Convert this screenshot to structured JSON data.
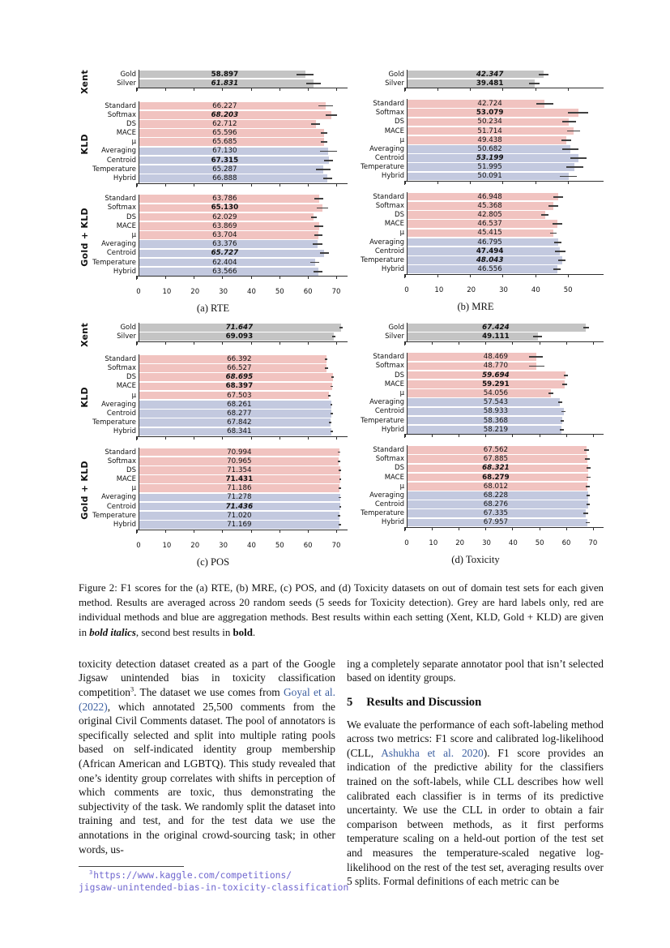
{
  "colors": {
    "grey": "#c4c4c4",
    "red": "#f1c3c0",
    "blue": "#c3c9df",
    "errbar": "#404040",
    "citation_link": "#3c5fa0",
    "url_link": "#6f66cf"
  },
  "figure": {
    "caption_segments": [
      {
        "t": "Figure 2: F1 scores for the (a) RTE, (b) MRE, (c) POS, and (d) Toxicity datasets on out of domain test sets for each given method. Results are averaged across 20 random seeds (5 seeds for Toxicity detection). Grey are hard labels only, red are individual methods and blue are aggregation methods. Best results within each setting (Xent, KLD, Gold + KLD) are given in "
      },
      {
        "t": "bold italics",
        "s": "bi"
      },
      {
        "t": ", second best results in "
      },
      {
        "t": "bold",
        "s": "b"
      },
      {
        "t": "."
      }
    ]
  },
  "chart_data": [
    {
      "id": "a",
      "caption": "(a) RTE",
      "type": "bar",
      "orientation": "horizontal",
      "group_labels": true,
      "xmax": 74,
      "ticks": [
        0,
        10,
        20,
        30,
        40,
        50,
        60,
        70
      ],
      "label_x_pct": 41,
      "groups": [
        {
          "label": "Xent",
          "bars": [
            {
              "label": "Gold",
              "value": 58.897,
              "err": 3.0,
              "color": "grey",
              "emph": "b"
            },
            {
              "label": "Silver",
              "value": 61.831,
              "err": 2.6,
              "color": "grey",
              "emph": "bi"
            }
          ]
        },
        {
          "label": "KLD",
          "bars": [
            {
              "label": "Standard",
              "value": 66.227,
              "err": 2.6,
              "color": "red"
            },
            {
              "label": "Softmax",
              "value": 68.203,
              "err": 2.0,
              "color": "red",
              "emph": "bi"
            },
            {
              "label": "DS",
              "value": 62.712,
              "err": 1.6,
              "color": "red"
            },
            {
              "label": "MACE",
              "value": 65.596,
              "err": 1.1,
              "color": "red"
            },
            {
              "label": "μ",
              "value": 65.685,
              "err": 1.1,
              "color": "red"
            },
            {
              "label": "Averaging",
              "value": 67.13,
              "err": 3.0,
              "color": "blue"
            },
            {
              "label": "Centroid",
              "value": 67.315,
              "err": 1.6,
              "color": "blue",
              "emph": "b"
            },
            {
              "label": "Temperature",
              "value": 65.287,
              "err": 2.6,
              "color": "blue"
            },
            {
              "label": "Hybrid",
              "value": 66.888,
              "err": 1.6,
              "color": "blue"
            }
          ]
        },
        {
          "label": "Gold + KLD",
          "bars": [
            {
              "label": "Standard",
              "value": 63.786,
              "err": 1.6,
              "color": "red"
            },
            {
              "label": "Softmax",
              "value": 65.13,
              "err": 2.1,
              "color": "red",
              "emph": "b"
            },
            {
              "label": "DS",
              "value": 62.029,
              "err": 1.1,
              "color": "red"
            },
            {
              "label": "MACE",
              "value": 63.869,
              "err": 1.6,
              "color": "red"
            },
            {
              "label": "μ",
              "value": 63.704,
              "err": 1.4,
              "color": "red"
            },
            {
              "label": "Averaging",
              "value": 63.376,
              "err": 1.7,
              "color": "blue"
            },
            {
              "label": "Centroid",
              "value": 65.727,
              "err": 1.6,
              "color": "blue",
              "emph": "bi"
            },
            {
              "label": "Temperature",
              "value": 62.404,
              "err": 1.6,
              "color": "blue"
            },
            {
              "label": "Hybrid",
              "value": 63.566,
              "err": 1.6,
              "color": "blue"
            }
          ]
        }
      ]
    },
    {
      "id": "b",
      "caption": "(b) MRE",
      "type": "bar",
      "orientation": "horizontal",
      "group_labels": false,
      "xmax": 61,
      "ticks": [
        0,
        10,
        20,
        30,
        40,
        50
      ],
      "label_x_pct": 42,
      "groups": [
        {
          "label": "Xent",
          "bars": [
            {
              "label": "Gold",
              "value": 42.347,
              "err": 1.6,
              "color": "grey",
              "emph": "bi"
            },
            {
              "label": "Silver",
              "value": 39.481,
              "err": 1.7,
              "color": "grey",
              "emph": "b"
            }
          ]
        },
        {
          "label": "KLD",
          "bars": [
            {
              "label": "Standard",
              "value": 42.724,
              "err": 2.6,
              "color": "red"
            },
            {
              "label": "Softmax",
              "value": 53.079,
              "err": 3.1,
              "color": "red",
              "emph": "b"
            },
            {
              "label": "DS",
              "value": 50.234,
              "err": 2.1,
              "color": "red"
            },
            {
              "label": "MACE",
              "value": 51.714,
              "err": 2.1,
              "color": "red"
            },
            {
              "label": "μ",
              "value": 49.438,
              "err": 1.5,
              "color": "red"
            },
            {
              "label": "Averaging",
              "value": 50.682,
              "err": 2.6,
              "color": "blue"
            },
            {
              "label": "Centroid",
              "value": 53.199,
              "err": 2.6,
              "color": "blue",
              "emph": "bi"
            },
            {
              "label": "Temperature",
              "value": 51.995,
              "err": 2.6,
              "color": "blue"
            },
            {
              "label": "Hybrid",
              "value": 50.091,
              "err": 2.6,
              "color": "blue"
            }
          ]
        },
        {
          "label": "Gold + KLD",
          "bars": [
            {
              "label": "Standard",
              "value": 46.948,
              "err": 1.5,
              "color": "red"
            },
            {
              "label": "Softmax",
              "value": 45.368,
              "err": 1.6,
              "color": "red"
            },
            {
              "label": "DS",
              "value": 42.805,
              "err": 1.1,
              "color": "red"
            },
            {
              "label": "MACE",
              "value": 46.537,
              "err": 1.5,
              "color": "red"
            },
            {
              "label": "μ",
              "value": 45.415,
              "err": 1.0,
              "color": "red"
            },
            {
              "label": "Averaging",
              "value": 46.795,
              "err": 1.1,
              "color": "blue"
            },
            {
              "label": "Centroid",
              "value": 47.494,
              "err": 1.6,
              "color": "blue",
              "emph": "b"
            },
            {
              "label": "Temperature",
              "value": 48.043,
              "err": 1.1,
              "color": "blue",
              "emph": "bi"
            },
            {
              "label": "Hybrid",
              "value": 46.556,
              "err": 1.1,
              "color": "blue"
            }
          ]
        }
      ]
    },
    {
      "id": "c",
      "caption": "(c) POS",
      "type": "bar",
      "orientation": "horizontal",
      "group_labels": true,
      "xmax": 74,
      "ticks": [
        0,
        10,
        20,
        30,
        40,
        50,
        60,
        70
      ],
      "label_x_pct": 48,
      "groups": [
        {
          "label": "Xent",
          "bars": [
            {
              "label": "Gold",
              "value": 71.647,
              "err": 0.5,
              "color": "grey",
              "emph": "bi"
            },
            {
              "label": "Silver",
              "value": 69.093,
              "err": 0.5,
              "color": "grey",
              "emph": "b"
            }
          ]
        },
        {
          "label": "KLD",
          "bars": [
            {
              "label": "Standard",
              "value": 66.392,
              "err": 0.5,
              "color": "red"
            },
            {
              "label": "Softmax",
              "value": 66.527,
              "err": 0.5,
              "color": "red"
            },
            {
              "label": "DS",
              "value": 68.695,
              "err": 0.4,
              "color": "red",
              "emph": "bi"
            },
            {
              "label": "MACE",
              "value": 68.397,
              "err": 0.4,
              "color": "red",
              "emph": "b"
            },
            {
              "label": "μ",
              "value": 67.503,
              "err": 0.4,
              "color": "red"
            },
            {
              "label": "Averaging",
              "value": 68.261,
              "err": 0.4,
              "color": "blue"
            },
            {
              "label": "Centroid",
              "value": 68.277,
              "err": 0.4,
              "color": "blue"
            },
            {
              "label": "Temperature",
              "value": 67.842,
              "err": 0.4,
              "color": "blue"
            },
            {
              "label": "Hybrid",
              "value": 68.341,
              "err": 0.4,
              "color": "blue"
            }
          ]
        },
        {
          "label": "Gold + KLD",
          "bars": [
            {
              "label": "Standard",
              "value": 70.994,
              "err": 0.4,
              "color": "red"
            },
            {
              "label": "Softmax",
              "value": 70.965,
              "err": 0.4,
              "color": "red"
            },
            {
              "label": "DS",
              "value": 71.354,
              "err": 0.4,
              "color": "red"
            },
            {
              "label": "MACE",
              "value": 71.431,
              "err": 0.4,
              "color": "red",
              "emph": "b"
            },
            {
              "label": "μ",
              "value": 71.186,
              "err": 0.4,
              "color": "red"
            },
            {
              "label": "Averaging",
              "value": 71.278,
              "err": 0.4,
              "color": "blue"
            },
            {
              "label": "Centroid",
              "value": 71.436,
              "err": 0.4,
              "color": "blue",
              "emph": "bi"
            },
            {
              "label": "Temperature",
              "value": 71.02,
              "err": 0.4,
              "color": "blue"
            },
            {
              "label": "Hybrid",
              "value": 71.169,
              "err": 0.4,
              "color": "blue"
            }
          ]
        }
      ]
    },
    {
      "id": "d",
      "caption": "(d) Toxicity",
      "type": "bar",
      "orientation": "horizontal",
      "group_labels": false,
      "xmax": 74,
      "ticks": [
        0,
        10,
        20,
        30,
        40,
        50,
        60,
        70
      ],
      "label_x_pct": 45,
      "groups": [
        {
          "label": "Xent",
          "bars": [
            {
              "label": "Gold",
              "value": 67.424,
              "err": 1.0,
              "color": "grey",
              "emph": "bi"
            },
            {
              "label": "Silver",
              "value": 49.111,
              "err": 1.6,
              "color": "grey",
              "emph": "b"
            }
          ]
        },
        {
          "label": "KLD",
          "bars": [
            {
              "label": "Standard",
              "value": 48.469,
              "err": 2.6,
              "color": "red"
            },
            {
              "label": "Softmax",
              "value": 48.77,
              "err": 3.0,
              "color": "red"
            },
            {
              "label": "DS",
              "value": 59.694,
              "err": 0.8,
              "color": "red",
              "emph": "bi"
            },
            {
              "label": "MACE",
              "value": 59.291,
              "err": 1.0,
              "color": "red",
              "emph": "b"
            },
            {
              "label": "μ",
              "value": 54.056,
              "err": 1.0,
              "color": "red"
            },
            {
              "label": "Averaging",
              "value": 57.543,
              "err": 0.8,
              "color": "blue"
            },
            {
              "label": "Centroid",
              "value": 58.933,
              "err": 0.8,
              "color": "blue"
            },
            {
              "label": "Temperature",
              "value": 58.368,
              "err": 0.7,
              "color": "blue"
            },
            {
              "label": "Hybrid",
              "value": 58.219,
              "err": 0.8,
              "color": "blue"
            }
          ]
        },
        {
          "label": "Gold + KLD",
          "bars": [
            {
              "label": "Standard",
              "value": 67.562,
              "err": 0.9,
              "color": "red"
            },
            {
              "label": "Softmax",
              "value": 67.885,
              "err": 0.9,
              "color": "red"
            },
            {
              "label": "DS",
              "value": 68.321,
              "err": 0.8,
              "color": "red",
              "emph": "bi"
            },
            {
              "label": "MACE",
              "value": 68.279,
              "err": 0.7,
              "color": "red",
              "emph": "b"
            },
            {
              "label": "μ",
              "value": 68.012,
              "err": 0.8,
              "color": "red"
            },
            {
              "label": "Averaging",
              "value": 68.228,
              "err": 0.6,
              "color": "blue"
            },
            {
              "label": "Centroid",
              "value": 68.276,
              "err": 0.6,
              "color": "blue"
            },
            {
              "label": "Temperature",
              "value": 67.335,
              "err": 0.9,
              "color": "blue"
            },
            {
              "label": "Hybrid",
              "value": 67.957,
              "err": 0.7,
              "color": "blue"
            }
          ]
        }
      ]
    }
  ],
  "body": {
    "left": {
      "paragraph_segments": [
        {
          "t": "toxicity detection dataset created as a part of the Google Jigsaw unintended bias in toxicity classification competition"
        },
        {
          "t": "3",
          "s": "sup"
        },
        {
          "t": ". The dataset we use comes from "
        },
        {
          "t": "Goyal et al. (2022)",
          "s": "link"
        },
        {
          "t": ", which annotated 25,500 comments from the original Civil Comments dataset. The pool of annotators is specifically selected and split into multiple rating pools based on self-indicated identity group membership (African American and LGBTQ). This study revealed that one’s identity group correlates with shifts in perception of which comments are toxic, thus demonstrating the subjectivity of the task. We randomly split the dataset into training and test, and for the test data we use the annotations in the original crowd-sourcing task; in other words, us-"
        }
      ],
      "footnote": {
        "marker": "3",
        "line1": "https://www.kaggle.com/competitions/",
        "line2": "jigsaw-unintended-bias-in-toxicity-classification"
      }
    },
    "right": {
      "para1_segments": [
        {
          "t": "ing a completely separate annotator pool that isn’t selected based on identity groups."
        }
      ],
      "heading": {
        "number": "5",
        "title": "Results and Discussion"
      },
      "para2_segments": [
        {
          "t": "We evaluate the performance of each soft-labeling method across two metrics: F1 score and calibrated log-likelihood (CLL, "
        },
        {
          "t": "Ashukha et al. 2020",
          "s": "link"
        },
        {
          "t": "). F1 score provides an indication of the predictive ability for the classifiers trained on the soft-labels, while CLL describes how well calibrated each classifier is in terms of its predictive uncertainty. We use the CLL in order to obtain a fair comparison between methods, as it first performs temperature scaling on a held-out portion of the test set and measures the temperature-scaled negative log-likelihood on the rest of the test set, averaging results over 5 splits. Formal definitions of each metric can be"
        }
      ]
    }
  }
}
